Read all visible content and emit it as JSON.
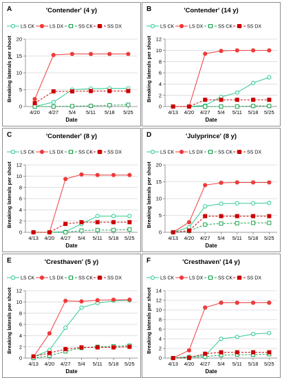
{
  "colors": {
    "ls": "#2ecc8f",
    "dx": "#ee3b3b",
    "ss_ck": "#17a24a",
    "ss_dx": "#cc0000",
    "grid": "#d9d9d9",
    "axis": "#7f7f7f"
  },
  "series_names": [
    "LS CK",
    "LS DX",
    "SS CK",
    "SS DX"
  ],
  "xlabel": "Date",
  "ylabel": "Breaking laterals per shoot",
  "chart_data": [
    {
      "letter": "A",
      "title": "'Contender' (4 y)",
      "type": "line",
      "x": [
        "4/20",
        "4/27",
        "5/4",
        "5/11",
        "5/18",
        "5/25"
      ],
      "ylim": [
        0,
        20
      ],
      "yticks": [
        0,
        5,
        10,
        15,
        20
      ],
      "series": [
        {
          "name": "LS CK",
          "values": [
            0,
            1.3,
            5,
            5.3,
            5.4,
            5.4
          ]
        },
        {
          "name": "LS DX",
          "values": [
            2.2,
            15.3,
            15.6,
            15.6,
            15.6,
            15.6
          ]
        },
        {
          "name": "SS CK",
          "values": [
            0,
            0,
            0.1,
            0.2,
            0.4,
            0.5
          ]
        },
        {
          "name": "SS DX",
          "values": [
            1,
            4.5,
            4.5,
            4.6,
            4.6,
            4.6
          ]
        }
      ]
    },
    {
      "letter": "B",
      "title": "'Contender' (14 y)",
      "type": "line",
      "x": [
        "4/13",
        "4/20",
        "4/27",
        "5/4",
        "5/11",
        "5/18",
        "5/25"
      ],
      "ylim": [
        0,
        12
      ],
      "yticks": [
        0,
        2,
        4,
        6,
        8,
        10,
        12
      ],
      "series": [
        {
          "name": "LS CK",
          "values": [
            0,
            0,
            0.2,
            1.7,
            2.5,
            4.2,
            5.2
          ]
        },
        {
          "name": "LS DX",
          "values": [
            0,
            0,
            9.4,
            9.9,
            10,
            10,
            10
          ]
        },
        {
          "name": "SS CK",
          "values": [
            0,
            0,
            0,
            0,
            0,
            0.1,
            0.1
          ]
        },
        {
          "name": "SS DX",
          "values": [
            0,
            0,
            1.2,
            1.2,
            1.2,
            1.2,
            1.2
          ]
        }
      ]
    },
    {
      "letter": "C",
      "title": "'Contender' (8 y)",
      "type": "line",
      "x": [
        "4/13",
        "4/20",
        "4/27",
        "5/4",
        "5/11",
        "5/18",
        "5/25"
      ],
      "ylim": [
        0,
        12
      ],
      "yticks": [
        0,
        2,
        4,
        6,
        8,
        10,
        12
      ],
      "series": [
        {
          "name": "LS CK",
          "values": [
            0,
            0,
            0.1,
            1.5,
            2.9,
            2.9,
            2.9
          ]
        },
        {
          "name": "LS DX",
          "values": [
            0,
            0,
            9.5,
            10.3,
            10.2,
            10.2,
            10.2
          ]
        },
        {
          "name": "SS CK",
          "values": [
            0,
            0,
            0,
            0.3,
            0.4,
            0.4,
            0.5
          ]
        },
        {
          "name": "SS DX",
          "values": [
            0,
            0,
            1.5,
            1.8,
            1.8,
            1.8,
            1.8
          ]
        }
      ]
    },
    {
      "letter": "D",
      "title": "'Julyprince' (8 y)",
      "type": "line",
      "x": [
        "4/13",
        "4/20",
        "4/27",
        "5/4",
        "5/11",
        "5/18",
        "5/25"
      ],
      "ylim": [
        0,
        20
      ],
      "yticks": [
        0,
        5,
        10,
        15,
        20
      ],
      "series": [
        {
          "name": "LS CK",
          "values": [
            0,
            1.5,
            7.7,
            8.5,
            8.6,
            8.6,
            8.7
          ]
        },
        {
          "name": "LS DX",
          "values": [
            0,
            3,
            14,
            14.7,
            14.8,
            14.8,
            14.8
          ]
        },
        {
          "name": "SS CK",
          "values": [
            0,
            0.4,
            2.3,
            2.6,
            2.7,
            2.8,
            2.8
          ]
        },
        {
          "name": "SS DX",
          "values": [
            0,
            0.5,
            4.8,
            4.8,
            4.8,
            4.8,
            4.8
          ]
        }
      ]
    },
    {
      "letter": "E",
      "title": "'Cresthaven' (5 y)",
      "type": "line",
      "x": [
        "4/13",
        "4/20",
        "4/27",
        "5/4",
        "5/11",
        "5/18",
        "5/25"
      ],
      "ylim": [
        0,
        12
      ],
      "yticks": [
        0,
        2,
        4,
        6,
        8,
        10,
        12
      ],
      "series": [
        {
          "name": "LS CK",
          "values": [
            0.2,
            1.4,
            5.4,
            9,
            9.8,
            10.2,
            10.3
          ]
        },
        {
          "name": "LS DX",
          "values": [
            0.2,
            4.4,
            10.2,
            10.1,
            10.3,
            10.4,
            10.4
          ]
        },
        {
          "name": "SS CK",
          "values": [
            0,
            0.4,
            1.2,
            1.8,
            2,
            2.1,
            2.2
          ]
        },
        {
          "name": "SS DX",
          "values": [
            0.3,
            0.9,
            1.6,
            1.9,
            1.9,
            1.9,
            2
          ]
        }
      ]
    },
    {
      "letter": "F",
      "title": "'Cresthaven' (14 y)",
      "type": "line",
      "x": [
        "4/13",
        "4/20",
        "4/27",
        "5/4",
        "5/11",
        "5/18",
        "5/25"
      ],
      "ylim": [
        0,
        14
      ],
      "yticks": [
        0,
        2,
        4,
        6,
        8,
        10,
        12,
        14
      ],
      "series": [
        {
          "name": "LS CK",
          "values": [
            0,
            0.3,
            0.5,
            4,
            4.4,
            5,
            5.2
          ]
        },
        {
          "name": "LS DX",
          "values": [
            0,
            1.6,
            10.5,
            11.5,
            11.5,
            11.5,
            11.5
          ]
        },
        {
          "name": "SS CK",
          "values": [
            0,
            0,
            0.3,
            0.6,
            0.7,
            0.7,
            0.8
          ]
        },
        {
          "name": "SS DX",
          "values": [
            0,
            0.1,
            0.9,
            1.2,
            1.2,
            1.2,
            1.2
          ]
        }
      ]
    }
  ]
}
